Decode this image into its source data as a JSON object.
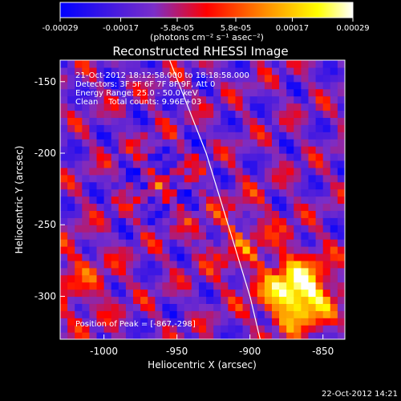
{
  "chart_data": {
    "type": "heatmap",
    "title": "Reconstructed RHESSI Image",
    "xlabel": "Heliocentric X (arcsec)",
    "ylabel": "Heliocentric Y (arcsec)",
    "xlim": [
      -1030,
      -835
    ],
    "ylim": [
      -330,
      -135
    ],
    "x_ticks": [
      -1000,
      -950,
      -900,
      -850
    ],
    "y_ticks": [
      -300,
      -250,
      -200,
      -150
    ],
    "x_tick_labels": [
      "-1000",
      "-950",
      "-900",
      "-850"
    ],
    "y_tick_labels": [
      "-300",
      "-250",
      "-200",
      "-150"
    ],
    "colorbar": {
      "range": [
        -0.00029,
        0.00029
      ],
      "ticks": [
        -0.00029,
        -0.00017,
        -5.8e-05,
        5.8e-05,
        0.00017,
        0.00029
      ],
      "tick_labels": [
        "-0.00029",
        "-0.00017",
        "-5.8e-05",
        "5.8e-05",
        "0.00017",
        "0.00029"
      ],
      "units": "(photons cm⁻² s⁻¹ asec⁻²)",
      "colors": [
        "#0000ff",
        "#7a2ec8",
        "#ff0000",
        "#ff8c00",
        "#ffff00",
        "#ffffff"
      ]
    },
    "annotations": [
      "21-Oct-2012 18:12:58.000 to 18:18:58.000",
      "Detectors: 3F 5F 6F 7F 8F 9F, Att 0",
      "Energy Range: 25.0 - 50.0 keV",
      "Clean    Total counts: 9.96E+03",
      "Position of Peak = [-867,-298]"
    ],
    "peak": {
      "x": -867,
      "y": -298
    },
    "limb_curve": [
      [
        -955,
        -135
      ],
      [
        -930,
        -200
      ],
      [
        -915,
        -250
      ],
      [
        -900,
        -300
      ],
      [
        -893,
        -330
      ]
    ],
    "grid": false
  },
  "footer": {
    "timestamp": "22-Oct-2012 14:21"
  }
}
